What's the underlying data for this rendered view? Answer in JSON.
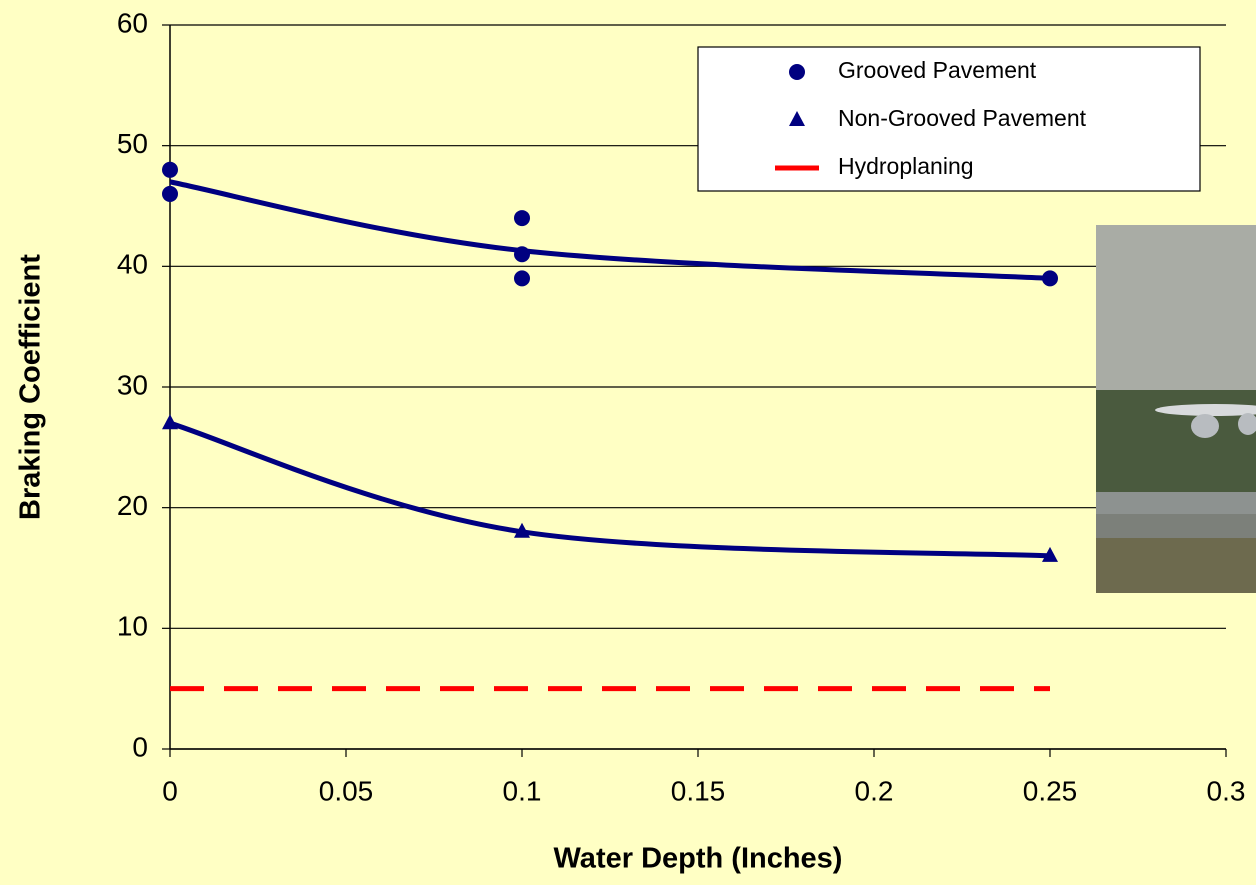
{
  "chart_data": {
    "type": "scatter",
    "xlabel": "Water Depth (Inches)",
    "ylabel": "Braking Coefficient",
    "xlim": [
      0,
      0.3
    ],
    "ylim": [
      0,
      60
    ],
    "xticks": [
      0,
      0.05,
      0.1,
      0.15,
      0.2,
      0.25,
      0.3
    ],
    "yticks": [
      0,
      10,
      20,
      30,
      40,
      50,
      60
    ],
    "grid": true,
    "legend": "upper right",
    "series": [
      {
        "name": "Grooved Pavement",
        "color": "#000080",
        "marker": "circle",
        "x": [
          0,
          0,
          0.1,
          0.1,
          0.1,
          0.25
        ],
        "values": [
          48,
          46,
          44,
          41,
          39,
          39
        ]
      },
      {
        "name": "Non-Grooved Pavement",
        "color": "#000080",
        "marker": "triangle",
        "x": [
          0,
          0.1,
          0.25
        ],
        "values": [
          27,
          18,
          16
        ]
      },
      {
        "name": "Hydroplaning",
        "color": "#ff0000",
        "marker": "dashed-line",
        "x": [
          0,
          0.25
        ],
        "values": [
          5,
          5
        ]
      }
    ],
    "trendlines": [
      {
        "color": "#000080",
        "x": [
          0,
          0.1,
          0.25
        ],
        "values": [
          47,
          41.3,
          39
        ]
      },
      {
        "color": "#000080",
        "x": [
          0,
          0.1,
          0.25
        ],
        "values": [
          27,
          18,
          16
        ]
      }
    ]
  }
}
